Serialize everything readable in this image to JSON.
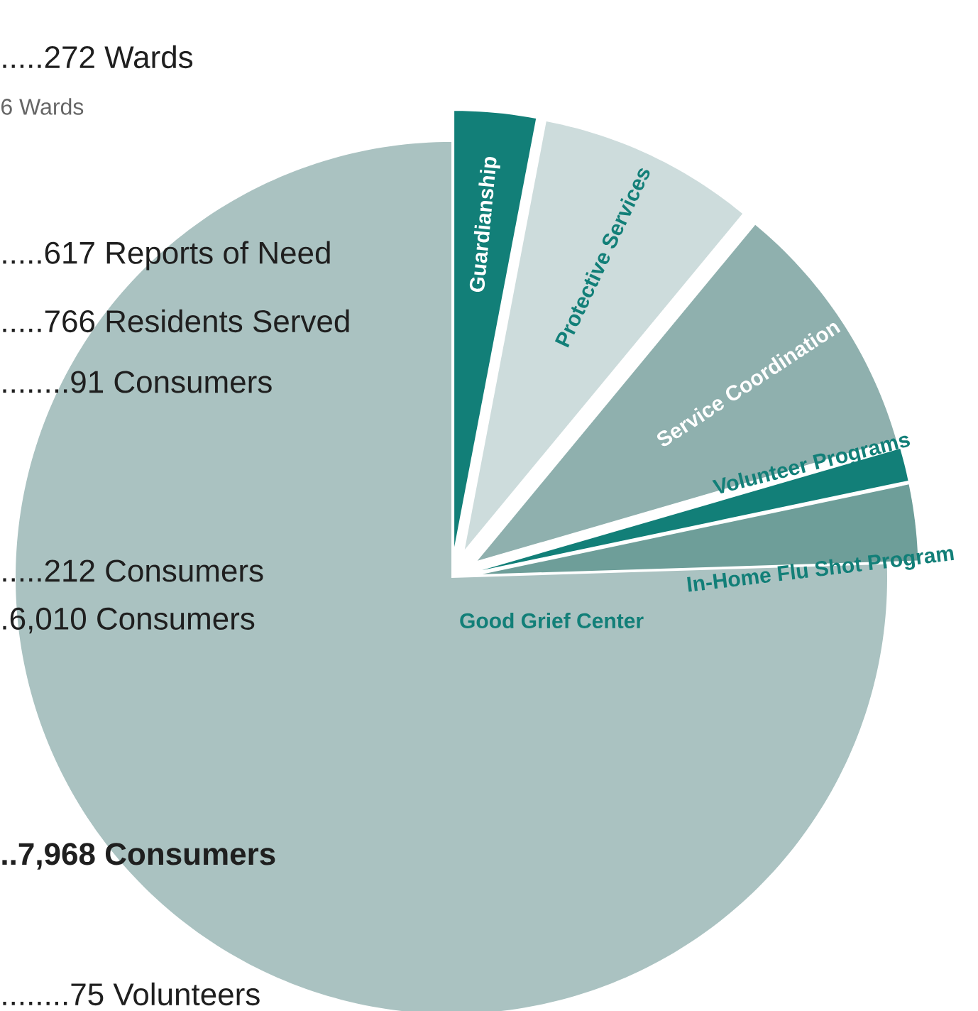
{
  "chart_data": {
    "type": "pie",
    "categories": [
      "Guardianship",
      "Protective Services",
      "Service Coordination",
      "Volunteer Programs",
      "In-Home Flu Shot Program",
      "Good Grief Center"
    ],
    "values": [
      3,
      8,
      9.5,
      1.2,
      2.8,
      75.5
    ],
    "colors": [
      "#127f78",
      "#cddcdc",
      "#8fb0ae",
      "#127f78",
      "#6e9e99",
      "#aac2c1"
    ],
    "annotations": [
      ".....272 Wards",
      "6 Wards",
      ".....617 Reports of Need",
      ".....766 Residents Served",
      "........91 Consumers",
      ".....212 Consumers",
      ".6,010 Consumers",
      "..7,968 Consumers",
      "........75 Volunteers"
    ]
  }
}
